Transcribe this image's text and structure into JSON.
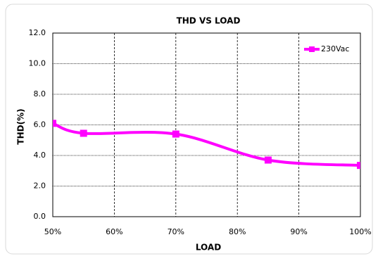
{
  "chart_data": {
    "type": "line",
    "title": "THD VS LOAD",
    "x_label": "LOAD",
    "y_label": "THD(%)",
    "x": [
      50,
      55,
      70,
      85,
      100
    ],
    "series": [
      {
        "name": "230Vac",
        "color": "#ff00ff",
        "values": [
          6.1,
          5.45,
          5.4,
          3.7,
          3.35
        ]
      }
    ],
    "xlim": [
      50,
      100
    ],
    "xticks": [
      {
        "value": 50,
        "label": "50%"
      },
      {
        "value": 60,
        "label": "60%"
      },
      {
        "value": 70,
        "label": "70%"
      },
      {
        "value": 80,
        "label": "80%"
      },
      {
        "value": 90,
        "label": "90%"
      },
      {
        "value": 100,
        "label": "100%"
      }
    ],
    "ylim": [
      0,
      12
    ],
    "yticks": [
      {
        "value": 0,
        "label": "0.0"
      },
      {
        "value": 2,
        "label": "2.0"
      },
      {
        "value": 4,
        "label": "4.0"
      },
      {
        "value": 6,
        "label": "6.0"
      },
      {
        "value": 8,
        "label": "8.0"
      },
      {
        "value": 10,
        "label": "10.0"
      },
      {
        "value": 12,
        "label": "12.0"
      }
    ],
    "grid": true,
    "legend": "upper right",
    "smooth": true
  }
}
